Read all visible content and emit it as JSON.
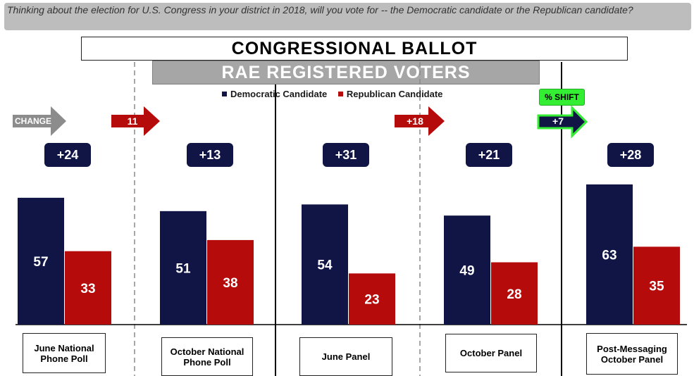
{
  "question": "Thinking about the election for U.S. Congress in your district in 2018, will you vote for -- the Democratic candidate or the Republican candidate?",
  "title": "CONGRESSIONAL BALLOT",
  "subtitle": "RAE REGISTERED VOTERS",
  "change_label": "CHANGE",
  "shift_label": "% SHIFT",
  "arrows": [
    "11",
    "+18",
    "+7"
  ],
  "colors": {
    "democratic": "#101546",
    "republican": "#b50b0b",
    "change_arrow": "#8c8c8c",
    "shift_arrow": "#101546",
    "shift_highlight": "#33ee33"
  },
  "chart_data": {
    "type": "bar",
    "title": "CONGRESSIONAL BALLOT",
    "subtitle": "RAE REGISTERED VOTERS",
    "categories": [
      "June National Phone Poll",
      "October National Phone Poll",
      "June Panel",
      "October Panel",
      "Post-Messaging October Panel"
    ],
    "series": [
      {
        "name": "Democratic Candidate",
        "values": [
          57,
          51,
          54,
          49,
          63
        ]
      },
      {
        "name": "Republican Candidate",
        "values": [
          33,
          38,
          23,
          28,
          35
        ]
      }
    ],
    "margins": [
      "+24",
      "+13",
      "+31",
      "+21",
      "+28"
    ],
    "legend": "top",
    "grid": false
  }
}
